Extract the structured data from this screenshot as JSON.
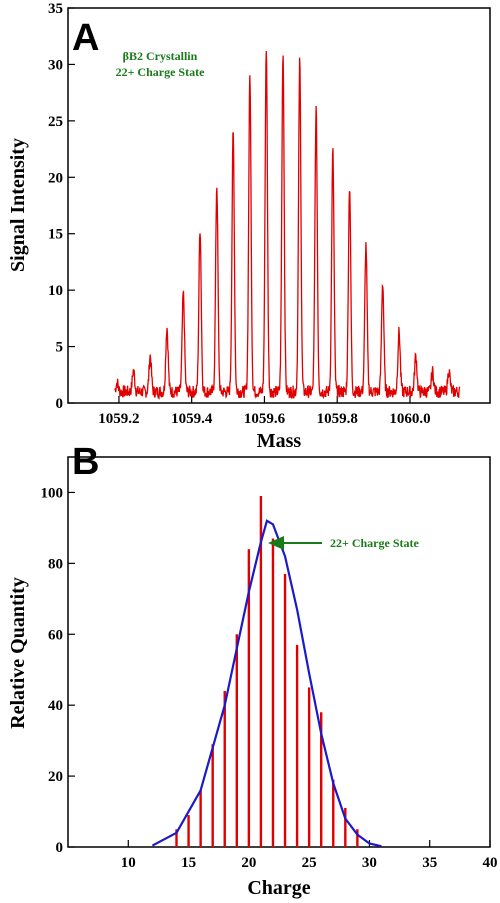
{
  "colors": {
    "spectrum": "#e00000",
    "fit_curve": "#1a1acc",
    "annotation": "#1a7a1a",
    "axis": "#000000"
  },
  "chart_data": [
    {
      "panel": "A",
      "type": "line",
      "xlabel": "Mass",
      "ylabel": "Signal Intensity",
      "xlim": [
        1059.06,
        1060.22
      ],
      "ylim": [
        0,
        35
      ],
      "xticks": [
        "1059.2",
        "1059.4",
        "1059.6",
        "1059.8",
        "1060.0"
      ],
      "yticks": [
        "0",
        "5",
        "10",
        "15",
        "20",
        "25",
        "30",
        "35"
      ],
      "annotation": [
        "βB2 Crystallin",
        "22+ Charge State"
      ],
      "grid": false,
      "series": [
        {
          "x": [
            1059.195,
            1059.24,
            1059.286,
            1059.332,
            1059.377,
            1059.423,
            1059.469,
            1059.514,
            1059.56,
            1059.605,
            1059.651,
            1059.697,
            1059.742,
            1059.788,
            1059.834,
            1059.879,
            1059.925,
            1059.97,
            1060.016,
            1060.062,
            1060.107
          ],
          "values": [
            0.8,
            1.9,
            3.2,
            5.7,
            8.7,
            14.5,
            18.3,
            23.0,
            28.0,
            30.5,
            30.1,
            29.3,
            25.0,
            21.3,
            18.3,
            13.0,
            9.7,
            5.3,
            3.2,
            1.8,
            1.9
          ]
        }
      ]
    },
    {
      "panel": "B",
      "type": "bar",
      "xlabel": "Charge",
      "ylabel": "Relative Quantity",
      "xlim": [
        5,
        40
      ],
      "ylim": [
        0,
        110
      ],
      "xticks": [
        "10",
        "15",
        "20",
        "25",
        "30",
        "35",
        "40"
      ],
      "yticks": [
        "0",
        "20",
        "40",
        "60",
        "80",
        "100"
      ],
      "annotation": "22+ Charge State",
      "grid": false,
      "series": [
        {
          "x": [
            14,
            15,
            16,
            17,
            18,
            19,
            20,
            21,
            22,
            23,
            24,
            25,
            26,
            27,
            28,
            29
          ],
          "values": [
            5,
            9,
            16,
            29,
            44,
            60,
            84,
            99,
            87,
            77,
            57,
            45,
            38,
            19,
            11,
            5
          ]
        },
        {
          "type": "line",
          "x": [
            12,
            14,
            16,
            18,
            19,
            20,
            21,
            21.5,
            22,
            23,
            24,
            25,
            26,
            27,
            28,
            29,
            30,
            31
          ],
          "values": [
            0.4,
            4,
            16,
            40,
            56,
            72,
            86,
            92,
            91,
            82,
            67,
            49,
            32,
            18,
            8,
            3.5,
            1,
            0.2
          ]
        }
      ]
    }
  ]
}
